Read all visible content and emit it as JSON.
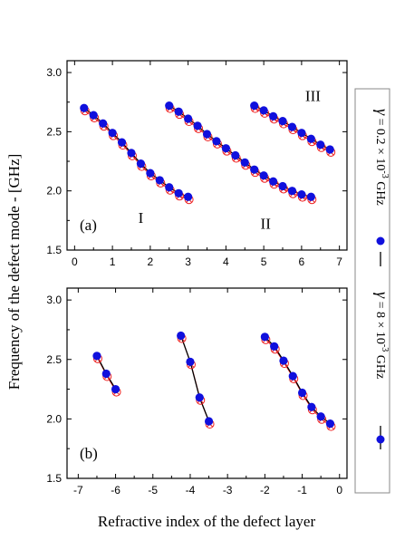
{
  "figure": {
    "ylabel": "Frequency of the defect mode - [GHz]",
    "xlabel": "Refractive index of the defect layer"
  },
  "legend": {
    "entry1": {
      "gamma": "γ",
      "eq": " = 0.2 × 10",
      "exp": "-3",
      "unit": " GHz"
    },
    "entry2": {
      "gamma": "γ",
      "eq": " = 8 × 10",
      "exp": "-3",
      "unit": " GHz"
    },
    "dot_color": "#1010dd",
    "cross_color": "#ee2222"
  },
  "chart_data": [
    {
      "type": "line",
      "panel": "(a)",
      "xlim": [
        -0.2,
        7.2
      ],
      "ylim": [
        1.5,
        3.1
      ],
      "xticks": [
        "0",
        "1",
        "2",
        "3",
        "4",
        "5",
        "6",
        "7"
      ],
      "yticks": [
        "1.5",
        "2.0",
        "2.5",
        "3.0"
      ],
      "annotations": [
        "I",
        "II",
        "III"
      ],
      "series": [
        {
          "label": "I",
          "x": [
            0.25,
            0.5,
            0.75,
            1.0,
            1.25,
            1.5,
            1.75,
            2.0,
            2.25,
            2.5,
            2.75,
            3.0
          ],
          "y": [
            2.7,
            2.64,
            2.57,
            2.49,
            2.41,
            2.32,
            2.23,
            2.15,
            2.09,
            2.03,
            1.98,
            1.95
          ]
        },
        {
          "label": "II",
          "x": [
            2.5,
            2.75,
            3.0,
            3.25,
            3.5,
            3.75,
            4.0,
            4.25,
            4.5,
            4.75,
            5.0,
            5.25,
            5.5,
            5.75,
            6.0,
            6.25
          ],
          "y": [
            2.72,
            2.67,
            2.61,
            2.55,
            2.48,
            2.42,
            2.36,
            2.3,
            2.24,
            2.18,
            2.13,
            2.08,
            2.04,
            2.0,
            1.97,
            1.95
          ]
        },
        {
          "label": "III",
          "x": [
            4.75,
            5.0,
            5.25,
            5.5,
            5.75,
            6.0,
            6.25,
            6.5,
            6.75
          ],
          "y": [
            2.72,
            2.68,
            2.63,
            2.59,
            2.54,
            2.49,
            2.44,
            2.39,
            2.35
          ]
        }
      ]
    },
    {
      "type": "line",
      "panel": "(b)",
      "xlim": [
        -7.3,
        0.2
      ],
      "ylim": [
        1.5,
        3.1
      ],
      "xticks": [
        "-7",
        "-6",
        "-5",
        "-4",
        "-3",
        "-2",
        "-1",
        "0"
      ],
      "yticks": [
        "1.5",
        "2.0",
        "2.5",
        "3.0"
      ],
      "series": [
        {
          "x": [
            -6.5,
            -6.25,
            -6.0
          ],
          "y": [
            2.53,
            2.38,
            2.25
          ]
        },
        {
          "x": [
            -4.25,
            -4.0,
            -3.75,
            -3.5
          ],
          "y": [
            2.7,
            2.48,
            2.18,
            1.98
          ]
        },
        {
          "x": [
            -2.0,
            -1.75,
            -1.5,
            -1.25,
            -1.0,
            -0.75,
            -0.5,
            -0.25
          ],
          "y": [
            2.69,
            2.61,
            2.49,
            2.36,
            2.22,
            2.1,
            2.02,
            1.96
          ]
        }
      ]
    }
  ]
}
